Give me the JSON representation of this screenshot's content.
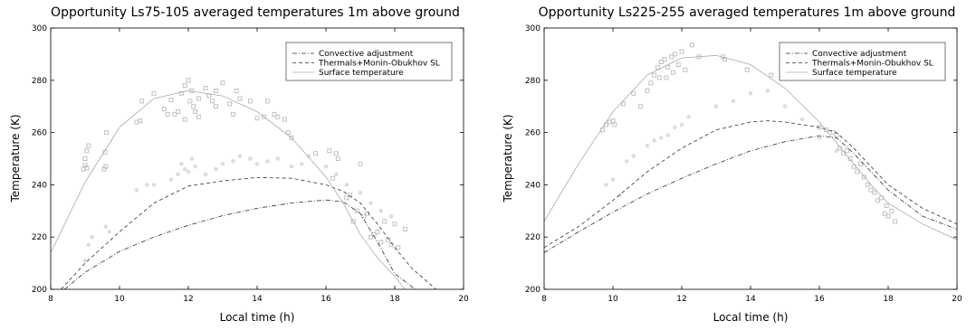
{
  "chart_data": [
    {
      "type": "line",
      "title": "Opportunity Ls75-105 averaged temperatures 1m above ground",
      "xlabel": "Local time (h)",
      "ylabel": "Temperature (K)",
      "xlim": [
        8,
        20
      ],
      "ylim": [
        200,
        300
      ],
      "xticks": [
        8,
        10,
        12,
        14,
        16,
        18,
        20
      ],
      "yticks": [
        200,
        220,
        240,
        260,
        280,
        300
      ],
      "grid": false,
      "legend_position": "top-right",
      "series": [
        {
          "name": "Convective adjustment",
          "style": "dash-dot",
          "color": "#333333",
          "x": [
            8.4,
            9.0,
            10.0,
            11.0,
            12.0,
            13.0,
            14.0,
            15.0,
            16.0,
            16.5,
            17.0,
            17.5,
            18.0,
            18.6
          ],
          "y": [
            200.0,
            206.5,
            214.5,
            220.0,
            224.5,
            228.2,
            231.0,
            233.0,
            234.2,
            233.5,
            229.0,
            218.0,
            206.0,
            200.0
          ]
        },
        {
          "name": "Thermals+Monin-Obukhov SL",
          "style": "dashed",
          "color": "#333333",
          "x": [
            8.3,
            9.0,
            10.0,
            11.0,
            12.0,
            13.0,
            14.0,
            15.0,
            16.0,
            16.5,
            17.0,
            17.5,
            18.0,
            18.5,
            19.2
          ],
          "y": [
            200.0,
            210.0,
            222.0,
            233.0,
            239.5,
            241.5,
            242.8,
            242.5,
            240.0,
            237.5,
            233.0,
            225.0,
            216.0,
            208.0,
            200.0
          ]
        },
        {
          "name": "Surface temperature",
          "style": "solid",
          "color": "#aaaaaa",
          "x": [
            8.0,
            9.0,
            10.0,
            11.0,
            12.0,
            13.0,
            14.0,
            15.0,
            16.0,
            16.5,
            17.0,
            17.5,
            18.0,
            18.3
          ],
          "y": [
            214.0,
            241.0,
            262.0,
            273.0,
            276.0,
            274.0,
            268.0,
            258.0,
            243.0,
            233.0,
            221.0,
            212.0,
            205.0,
            200.0
          ]
        }
      ],
      "observations_squares": {
        "color": "#bbbbbb",
        "x": [
          8.95,
          9.0,
          9.05,
          9.1,
          9.0,
          9.05,
          9.55,
          9.6,
          9.58,
          9.62,
          10.5,
          10.6,
          10.65,
          11.0,
          11.3,
          11.5,
          11.6,
          11.7,
          11.8,
          11.9,
          12.0,
          12.05,
          12.1,
          12.15,
          12.2,
          11.9,
          12.3,
          12.5,
          12.6,
          12.7,
          12.8,
          13.0,
          13.2,
          13.4,
          13.5,
          13.8,
          14.0,
          14.2,
          14.3,
          14.5,
          14.6,
          14.8,
          14.9,
          15.0,
          15.7,
          16.1,
          16.2,
          16.3,
          16.35,
          16.6,
          16.7,
          16.8,
          16.9,
          17.0,
          17.1,
          17.2,
          17.3,
          17.4,
          17.5,
          17.6,
          17.7,
          17.8,
          17.9,
          18.0,
          18.1,
          18.3,
          12.3,
          13.3,
          11.4,
          12.8
        ],
        "y": [
          246.0,
          247.5,
          253.0,
          255.0,
          250.0,
          246.5,
          246.0,
          247.0,
          252.5,
          260.0,
          264.0,
          264.5,
          272.0,
          275.0,
          269.0,
          272.5,
          267.0,
          268.0,
          275.0,
          278.0,
          280.0,
          272.0,
          276.0,
          270.0,
          268.0,
          265.0,
          273.0,
          277.0,
          274.0,
          272.0,
          276.0,
          279.0,
          271.0,
          276.0,
          273.0,
          272.0,
          265.5,
          266.0,
          272.0,
          267.0,
          266.0,
          265.0,
          260.0,
          258.0,
          252.0,
          253.0,
          242.5,
          252.0,
          250.0,
          235.0,
          236.0,
          226.0,
          230.0,
          248.0,
          228.0,
          229.0,
          220.0,
          221.0,
          222.0,
          218.0,
          226.0,
          219.0,
          217.0,
          225.0,
          216.0,
          223.0,
          266.0,
          267.0,
          267.0,
          270.0
        ]
      },
      "observations_dots": {
        "color": "#dddddd",
        "x": [
          9.0,
          9.1,
          9.2,
          9.6,
          9.7,
          10.5,
          11.0,
          11.5,
          11.7,
          11.9,
          12.0,
          12.2,
          12.5,
          12.8,
          13.0,
          13.3,
          13.5,
          13.8,
          14.0,
          14.3,
          14.6,
          15.0,
          15.3,
          15.5,
          16.0,
          16.3,
          16.6,
          17.0,
          17.3,
          17.6,
          17.9,
          11.8,
          12.1,
          10.8
        ],
        "y": [
          211.0,
          217.0,
          220.0,
          224.0,
          222.0,
          238.0,
          240.0,
          242.0,
          244.0,
          246.0,
          245.0,
          247.0,
          244.0,
          246.0,
          248.0,
          249.0,
          251.0,
          250.0,
          248.0,
          249.0,
          250.0,
          247.0,
          248.0,
          251.0,
          247.0,
          244.0,
          240.0,
          237.0,
          233.0,
          230.0,
          228.0,
          248.0,
          250.0,
          240.0
        ]
      }
    },
    {
      "type": "line",
      "title": "Opportunity Ls225-255 averaged temperatures 1m above ground",
      "xlabel": "Local time (h)",
      "ylabel": "Temperature (K)",
      "xlim": [
        8,
        20
      ],
      "ylim": [
        200,
        300
      ],
      "xticks": [
        8,
        10,
        12,
        14,
        16,
        18,
        20
      ],
      "yticks": [
        200,
        220,
        240,
        260,
        280,
        300
      ],
      "grid": false,
      "legend_position": "top-right",
      "series": [
        {
          "name": "Convective adjustment",
          "style": "dash-dot",
          "color": "#333333",
          "x": [
            8.0,
            9.0,
            10.0,
            11.0,
            12.0,
            13.0,
            14.0,
            15.0,
            16.0,
            16.5,
            17.0,
            17.5,
            18.0,
            19.0,
            20.0
          ],
          "y": [
            214.0,
            222.0,
            229.5,
            236.5,
            242.5,
            248.0,
            253.0,
            256.5,
            258.8,
            258.0,
            252.0,
            245.0,
            238.0,
            228.0,
            223.0
          ]
        },
        {
          "name": "Thermals+Monin-Obukhov SL",
          "style": "dashed",
          "color": "#333333",
          "x": [
            8.0,
            9.0,
            10.0,
            11.0,
            12.0,
            13.0,
            14.0,
            14.5,
            15.0,
            16.0,
            16.5,
            17.0,
            17.5,
            18.0,
            19.0,
            20.0
          ],
          "y": [
            216.0,
            224.0,
            234.0,
            245.0,
            254.0,
            261.0,
            264.0,
            264.5,
            264.0,
            262.0,
            260.0,
            254.0,
            247.0,
            240.0,
            231.0,
            225.0
          ]
        },
        {
          "name": "Surface temperature",
          "style": "solid",
          "color": "#aaaaaa",
          "x": [
            8.0,
            9.0,
            10.0,
            11.0,
            12.0,
            13.0,
            14.0,
            15.0,
            16.0,
            16.5,
            17.0,
            17.5,
            18.0,
            19.0,
            20.0
          ],
          "y": [
            226.0,
            248.0,
            268.0,
            282.0,
            288.5,
            289.5,
            286.0,
            277.0,
            264.0,
            256.0,
            248.0,
            240.0,
            233.0,
            225.0,
            219.0
          ]
        }
      ],
      "observations_squares": {
        "color": "#bbbbbb",
        "x": [
          9.7,
          9.8,
          9.9,
          10.0,
          10.05,
          10.3,
          10.6,
          10.8,
          11.0,
          11.1,
          11.2,
          11.3,
          11.35,
          11.4,
          11.5,
          11.55,
          11.6,
          11.7,
          11.75,
          11.8,
          11.9,
          12.0,
          12.1,
          12.3,
          12.5,
          13.2,
          13.25,
          13.9,
          14.6,
          14.9,
          15.1,
          16.0,
          16.2,
          16.4,
          16.5,
          16.6,
          16.7,
          16.8,
          16.9,
          17.0,
          17.1,
          17.2,
          17.3,
          17.4,
          17.5,
          17.6,
          17.7,
          17.8,
          17.9,
          18.0,
          18.1,
          18.2,
          17.95
        ],
        "y": [
          261.0,
          263.0,
          264.0,
          264.5,
          263.0,
          271.0,
          275.0,
          270.0,
          276.0,
          279.0,
          282.0,
          285.0,
          281.0,
          287.0,
          288.0,
          281.0,
          285.0,
          289.0,
          283.0,
          290.0,
          286.0,
          291.0,
          284.0,
          293.5,
          289.0,
          289.0,
          288.0,
          284.0,
          282.0,
          284.0,
          281.0,
          262.0,
          261.0,
          260.0,
          259.0,
          254.0,
          252.0,
          253.0,
          250.0,
          247.0,
          245.0,
          248.0,
          243.0,
          240.0,
          238.0,
          237.0,
          234.0,
          235.0,
          229.0,
          228.0,
          230.0,
          226.0,
          232.0
        ]
      },
      "observations_dots": {
        "color": "#dddddd",
        "x": [
          9.8,
          10.0,
          10.2,
          10.4,
          10.6,
          11.0,
          11.2,
          11.4,
          11.6,
          11.8,
          12.0,
          12.2,
          13.0,
          13.5,
          14.0,
          14.5,
          15.0,
          15.5,
          16.0,
          16.5
        ],
        "y": [
          240.0,
          242.0,
          236.0,
          249.0,
          251.0,
          255.0,
          257.0,
          258.0,
          259.0,
          262.0,
          263.0,
          266.0,
          270.0,
          272.0,
          275.0,
          276.0,
          270.0,
          265.0,
          258.0,
          253.0
        ]
      }
    }
  ]
}
